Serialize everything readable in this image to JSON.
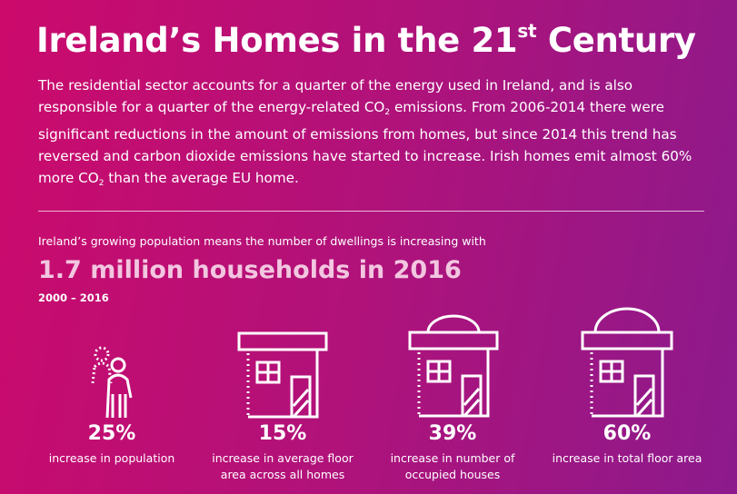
{
  "header": {
    "title": [
      "Ireland’s Homes in the 21",
      "st",
      " Century"
    ]
  },
  "intro": [
    "The residential sector accounts for a quarter of the energy used in Ireland, and is also responsible for a quarter of the energy-related CO",
    "2",
    " emissions. From 2006-2014 there were significant reductions in the amount of emissions from homes, but since 2014 this trend has reversed and carbon dioxide emissions have started to increase. Irish homes emit almost 60% more CO",
    "2",
    " than the average EU home."
  ],
  "section": {
    "lead": "Ireland’s growing population means the number of dwellings is increasing with",
    "headline": "1.7 million households in 2016",
    "period": "2000 – 2016"
  },
  "stats": [
    {
      "value": "25%",
      "label": "increase in population"
    },
    {
      "value": "15%",
      "label": "increase in average floor area across all homes"
    },
    {
      "value": "39%",
      "label": "increase in number of occupied houses"
    },
    {
      "value": "60%",
      "label": "increase in total floor area"
    }
  ]
}
